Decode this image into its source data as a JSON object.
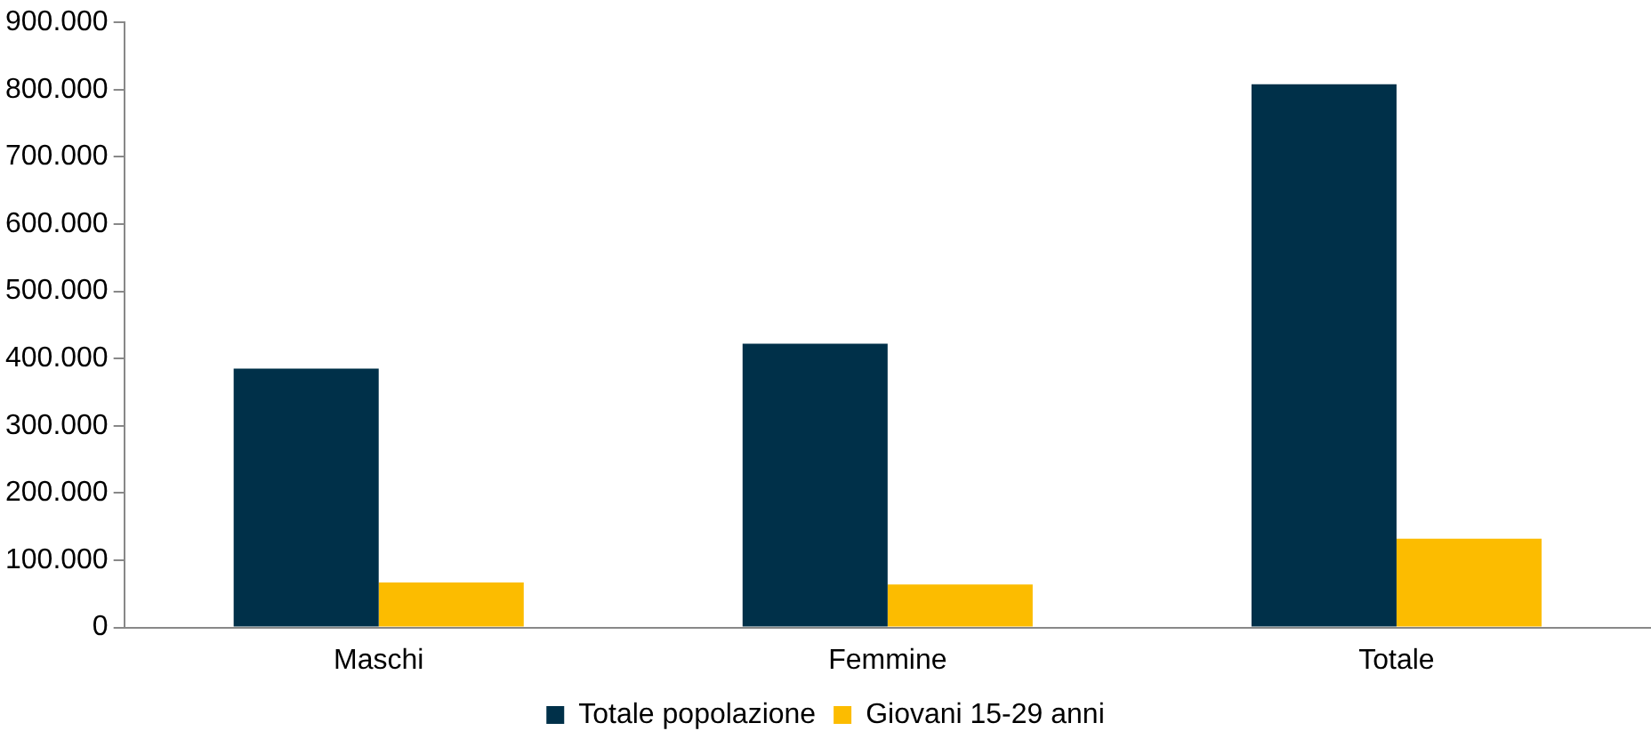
{
  "chart_data": {
    "type": "bar",
    "categories": [
      "Maschi",
      "Femmine",
      "Totale"
    ],
    "series": [
      {
        "name": "Totale popolazione",
        "color": "#003049",
        "values": [
          385000,
          422000,
          808000
        ]
      },
      {
        "name": "Giovani 15-29 anni",
        "color": "#fcbc00",
        "values": [
          67000,
          64000,
          132000
        ]
      }
    ],
    "ylim": [
      0,
      900000
    ],
    "yticks": [
      0,
      {
        "value": 100000,
        "label": "100.000"
      },
      {
        "value": 200000,
        "label": "200.000"
      },
      {
        "value": 300000,
        "label": "300.000"
      },
      {
        "value": 400000,
        "label": "400.000"
      },
      {
        "value": 500000,
        "label": "500.000"
      },
      {
        "value": 600000,
        "label": "600.000"
      },
      {
        "value": 700000,
        "label": "700.000"
      },
      {
        "value": 800000,
        "label": "800.000"
      },
      {
        "value": 900000,
        "label": "900.000"
      }
    ],
    "grid": false,
    "legend": "bottom"
  }
}
